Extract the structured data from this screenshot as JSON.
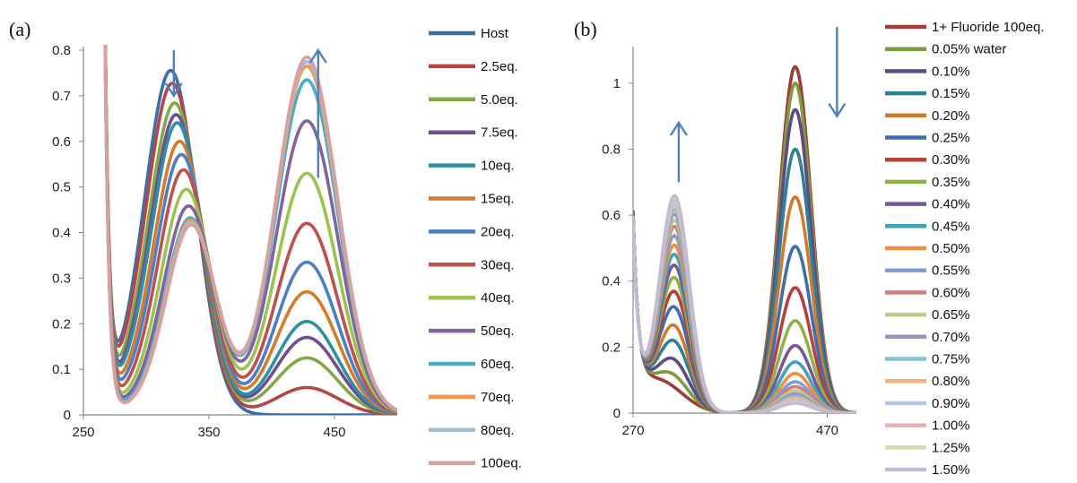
{
  "chart_data": [
    {
      "type": "line",
      "panel_label": "(a)",
      "xlabel": "",
      "ylabel": "",
      "xlim": [
        250,
        500
      ],
      "ylim": [
        0,
        0.8
      ],
      "x_ticks": [
        "250",
        "350",
        "450"
      ],
      "y_ticks": [
        "0",
        "0.1",
        "0.2",
        "0.3",
        "0.4",
        "0.5",
        "0.6",
        "0.7",
        "0.8"
      ],
      "legend_position": "right",
      "arrows": [
        {
          "x": 322,
          "y_from": 0.8,
          "y_to": 0.7,
          "direction": "down"
        },
        {
          "x": 437,
          "y_from": 0.52,
          "y_to": 0.8,
          "direction": "up"
        }
      ],
      "series": [
        {
          "name": "Host",
          "color": "#3c6ea8",
          "peak_uv": 0.715,
          "peak_vis": 0.0,
          "min_val": 0.27
        },
        {
          "name": "2.5eq.",
          "color": "#b54645",
          "peak_uv": 0.69,
          "peak_vis": 0.06,
          "min_val": 0.27
        },
        {
          "name": "5.0eq.",
          "color": "#84a844",
          "peak_uv": 0.655,
          "peak_vis": 0.125,
          "min_val": 0.26
        },
        {
          "name": "7.5eq.",
          "color": "#6f4e93",
          "peak_uv": 0.635,
          "peak_vis": 0.17,
          "min_val": 0.25
        },
        {
          "name": "10eq.",
          "color": "#2f8fa3",
          "peak_uv": 0.62,
          "peak_vis": 0.205,
          "min_val": 0.245
        },
        {
          "name": "15eq.",
          "color": "#d67a2c",
          "peak_uv": 0.585,
          "peak_vis": 0.27,
          "min_val": 0.235
        },
        {
          "name": "20eq.",
          "color": "#4a80c5",
          "peak_uv": 0.56,
          "peak_vis": 0.335,
          "min_val": 0.225
        },
        {
          "name": "30eq.",
          "color": "#c0504d",
          "peak_uv": 0.53,
          "peak_vis": 0.42,
          "min_val": 0.215
        },
        {
          "name": "40eq.",
          "color": "#9bc34e",
          "peak_uv": 0.49,
          "peak_vis": 0.53,
          "min_val": 0.205
        },
        {
          "name": "50eq.",
          "color": "#8064a2",
          "peak_uv": 0.455,
          "peak_vis": 0.645,
          "min_val": 0.2
        },
        {
          "name": "60eq.",
          "color": "#4bacc6",
          "peak_uv": 0.43,
          "peak_vis": 0.735,
          "min_val": 0.195
        },
        {
          "name": "70eq.",
          "color": "#f79646",
          "peak_uv": 0.425,
          "peak_vis": 0.765,
          "min_val": 0.19
        },
        {
          "name": "80eq.",
          "color": "#a5b9db",
          "peak_uv": 0.42,
          "peak_vis": 0.775,
          "min_val": 0.19
        },
        {
          "name": "100eq.",
          "color": "#d9a0a0",
          "peak_uv": 0.415,
          "peak_vis": 0.785,
          "min_val": 0.19
        }
      ]
    },
    {
      "type": "line",
      "panel_label": "(b)",
      "xlabel": "",
      "ylabel": "",
      "xlim": [
        270,
        500
      ],
      "ylim": [
        0,
        1.1
      ],
      "x_ticks": [
        "270",
        "470"
      ],
      "y_ticks": [
        "0",
        "0.2",
        "0.4",
        "0.6",
        "0.8",
        "1"
      ],
      "legend_position": "right",
      "arrows": [
        {
          "x": 317,
          "y_from": 0.7,
          "y_to": 0.88,
          "direction": "up"
        },
        {
          "x": 480,
          "y_from": 1.17,
          "y_to": 0.9,
          "direction": "down"
        }
      ],
      "series": [
        {
          "name": "1+ Fluoride 100eq.",
          "color": "#a33a3a",
          "peak_uv": 0.0,
          "peak_vis": 1.05
        },
        {
          "name": "0.05% water",
          "color": "#7f9a3f",
          "peak_uv": 0.04,
          "peak_vis": 1.0
        },
        {
          "name": "0.10%",
          "color": "#5e4a87",
          "peak_uv": 0.09,
          "peak_vis": 0.92
        },
        {
          "name": "0.15%",
          "color": "#2f7f95",
          "peak_uv": 0.15,
          "peak_vis": 0.8
        },
        {
          "name": "0.20%",
          "color": "#d07a2f",
          "peak_uv": 0.2,
          "peak_vis": 0.655
        },
        {
          "name": "0.25%",
          "color": "#3d6eb0",
          "peak_uv": 0.26,
          "peak_vis": 0.505
        },
        {
          "name": "0.30%",
          "color": "#b5403d",
          "peak_uv": 0.31,
          "peak_vis": 0.38
        },
        {
          "name": "0.35%",
          "color": "#8fb149",
          "peak_uv": 0.355,
          "peak_vis": 0.28
        },
        {
          "name": "0.40%",
          "color": "#73599b",
          "peak_uv": 0.395,
          "peak_vis": 0.205
        },
        {
          "name": "0.45%",
          "color": "#40a2bd",
          "peak_uv": 0.43,
          "peak_vis": 0.155
        },
        {
          "name": "0.50%",
          "color": "#f08e3e",
          "peak_uv": 0.46,
          "peak_vis": 0.12
        },
        {
          "name": "0.55%",
          "color": "#7f9fd1",
          "peak_uv": 0.49,
          "peak_vis": 0.095
        },
        {
          "name": "0.60%",
          "color": "#d07f7e",
          "peak_uv": 0.52,
          "peak_vis": 0.08
        },
        {
          "name": "0.65%",
          "color": "#b5cf86",
          "peak_uv": 0.54,
          "peak_vis": 0.068
        },
        {
          "name": "0.70%",
          "color": "#a291c0",
          "peak_uv": 0.56,
          "peak_vis": 0.058
        },
        {
          "name": "0.75%",
          "color": "#86c2d5",
          "peak_uv": 0.575,
          "peak_vis": 0.05
        },
        {
          "name": "0.80%",
          "color": "#f7b27c",
          "peak_uv": 0.59,
          "peak_vis": 0.044
        },
        {
          "name": "0.90%",
          "color": "#b7c8e6",
          "peak_uv": 0.6,
          "peak_vis": 0.039
        },
        {
          "name": "1.00%",
          "color": "#e3b4b3",
          "peak_uv": 0.61,
          "peak_vis": 0.035
        },
        {
          "name": "1.25%",
          "color": "#cfe0a8",
          "peak_uv": 0.615,
          "peak_vis": 0.032
        },
        {
          "name": "1.50%",
          "color": "#c4b9d9",
          "peak_uv": 0.62,
          "peak_vis": 0.03
        }
      ]
    }
  ]
}
